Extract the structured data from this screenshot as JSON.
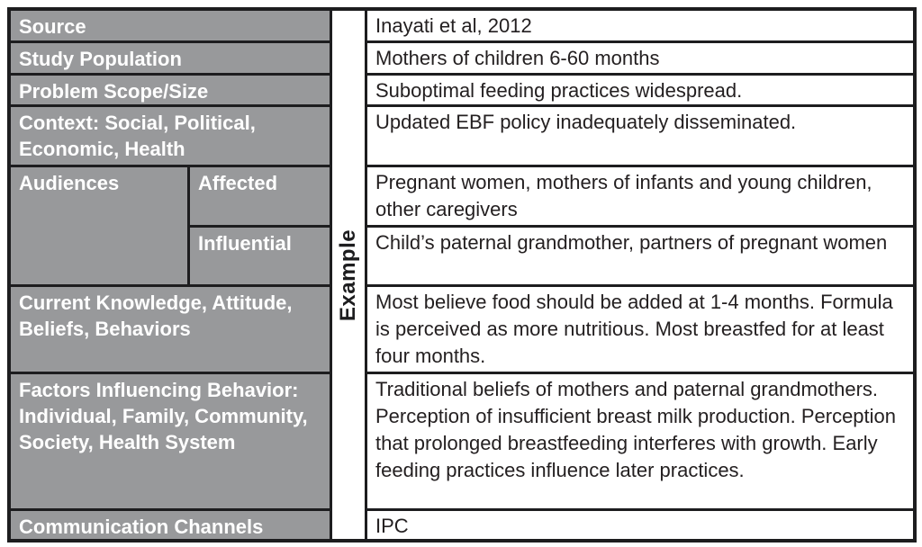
{
  "table": {
    "example_label": "Example",
    "colors": {
      "header_bg": "#98999b",
      "header_text": "#ffffff",
      "border": "#1d1d1f",
      "body_text": "#231f20"
    },
    "rows": [
      {
        "label": "Source",
        "content": "Inayati et al, 2012"
      },
      {
        "label": "Study Population",
        "content": "Mothers of children 6-60 months"
      },
      {
        "label": "Problem Scope/Size",
        "content": "Suboptimal feeding practices widespread."
      },
      {
        "label": "Context: Social, Political, Economic, Health",
        "content": "Updated EBF policy inadequately disseminated."
      },
      {
        "label": "Audiences",
        "sublabel": "Affected",
        "content": "Pregnant women, mothers of infants and young children, other caregivers"
      },
      {
        "sublabel": "Influential",
        "content": "Child’s paternal grandmother, partners of pregnant women"
      },
      {
        "label": "Current Knowledge, Attitude, Beliefs, Behaviors",
        "content": "Most believe food should be added at 1-4 months. Formula is perceived as more nutritious. Most breastfed for at least four months."
      },
      {
        "label": "Factors Influencing Behavior: Individual, Family, Community, Society, Health System",
        "content": "Traditional beliefs of mothers and paternal grandmothers. Perception of insufficient breast milk production. Perception that prolonged breastfeeding interferes with growth. Early feeding practices influence later practices."
      },
      {
        "label": "Communication Channels",
        "content": "IPC"
      }
    ]
  }
}
